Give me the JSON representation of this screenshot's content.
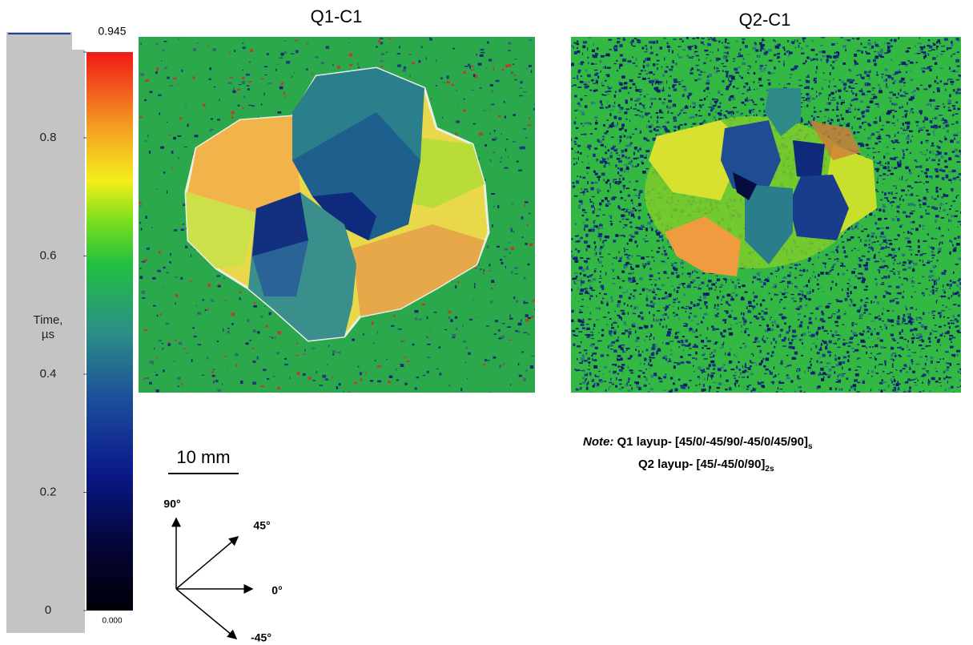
{
  "colorbar": {
    "ylim": [
      0,
      0.945
    ],
    "yticks": [
      0,
      0.2,
      0.4,
      0.6,
      0.8
    ],
    "end_labels": [
      {
        "value": 0.945,
        "label": "0.945"
      },
      {
        "value": 0,
        "label": "0.000"
      }
    ],
    "axis_label": [
      "Time,",
      "µs"
    ]
  },
  "panels": [
    {
      "title": "Q1-C1"
    },
    {
      "title": "Q2-C1"
    }
  ],
  "scale_bar": {
    "label": "10 mm"
  },
  "directions": [
    "90°",
    "45°",
    "0°",
    "-45°"
  ],
  "note": {
    "label": "Note:",
    "lines": [
      {
        "text": "Q1 layup- [45/0/-45/90/-45/0/45/90]",
        "subscript": "s"
      },
      {
        "text": "Q2 layup- [45/-45/0/90]",
        "subscript": "2s"
      }
    ]
  }
}
